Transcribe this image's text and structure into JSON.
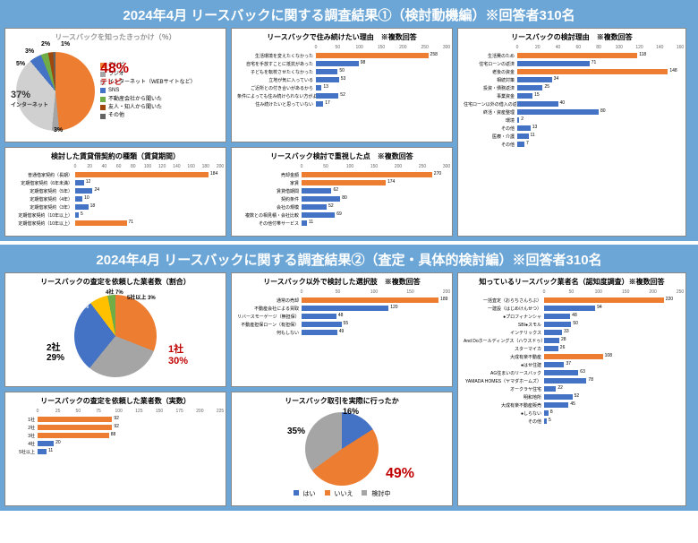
{
  "colors": {
    "orange": "#ed7d31",
    "blue": "#4472c4",
    "gray": "#a5a5a5",
    "lightgray": "#d0d0d0",
    "bg": "#6ba6d6",
    "red": "#c00000"
  },
  "section1": {
    "title": "2024年4月 リースバックに関する調査結果①（検討動機編）※回答者310名",
    "pie1": {
      "title": "リースバックを知ったきっかけ（％）",
      "slices": [
        {
          "label": "テレビ",
          "value": 48,
          "color": "#ed7d31"
        },
        {
          "label": "ラジオ",
          "value": 3,
          "color": "#a5a5a5"
        },
        {
          "label": "インターネット（WEBサイトなど）",
          "value": 37,
          "color": "#d0d0d0"
        },
        {
          "label": "SNS",
          "value": 5,
          "color": "#4472c4"
        },
        {
          "label": "不動産会社から聞いた",
          "value": 3,
          "color": "#70ad47"
        },
        {
          "label": "友人・知人から聞いた",
          "value": 2,
          "color": "#9e480e"
        },
        {
          "label": "その他",
          "value": 1,
          "color": "#636363"
        }
      ],
      "callout_big": {
        "text": "48%",
        "sub": "テレビ",
        "color": "#c00000"
      },
      "callout_2": {
        "text": "37%",
        "sub": "インターネット"
      }
    },
    "bar1": {
      "title": "リースバックで住み続けたい理由　※複数回答",
      "label_w": 88,
      "xmax": 300,
      "xstep": 50,
      "rows": [
        {
          "label": "生活環境を変えたくなかった",
          "value": 258,
          "color": "#ed7d31"
        },
        {
          "label": "自宅を手放すことに抵抗があった",
          "value": 98,
          "color": "#4472c4"
        },
        {
          "label": "子どもを転校させたくなかった",
          "value": 50,
          "color": "#4472c4"
        },
        {
          "label": "立地が気に入っている",
          "value": 53,
          "color": "#4472c4"
        },
        {
          "label": "ご近所との付き合いがあるから",
          "value": 13,
          "color": "#4472c4"
        },
        {
          "label": "条件によっても住み続けられない方がよかった",
          "value": 52,
          "color": "#4472c4"
        },
        {
          "label": "住み続けたいと思っていない",
          "value": 17,
          "color": "#4472c4"
        }
      ]
    },
    "bar2": {
      "title": "リースバックの検討理由　※複数回答",
      "label_w": 60,
      "xmax": 160,
      "xstep": 20,
      "rows": [
        {
          "label": "生活費のため",
          "value": 118,
          "color": "#ed7d31"
        },
        {
          "label": "住宅ローンの返済",
          "value": 71,
          "color": "#4472c4"
        },
        {
          "label": "老後の資金",
          "value": 148,
          "color": "#ed7d31"
        },
        {
          "label": "相続対策",
          "value": 34,
          "color": "#4472c4"
        },
        {
          "label": "投資・債務返済",
          "value": 25,
          "color": "#4472c4"
        },
        {
          "label": "事業資金",
          "value": 15,
          "color": "#4472c4"
        },
        {
          "label": "住宅ローン以外の借入の返済",
          "value": 40,
          "color": "#4472c4"
        },
        {
          "label": "終活・資産整理",
          "value": 80,
          "color": "#4472c4"
        },
        {
          "label": "環境",
          "value": 2,
          "color": "#4472c4"
        },
        {
          "label": "その他",
          "value": 13,
          "color": "#4472c4"
        },
        {
          "label": "医療・介護",
          "value": 11,
          "color": "#4472c4"
        },
        {
          "label": "その他",
          "value": 7,
          "color": "#4472c4"
        }
      ]
    },
    "bar3": {
      "title": "検討した賃貸借契約の種類（賃貸期間）",
      "label_w": 72,
      "xmax": 200,
      "xstep": 20,
      "rows": [
        {
          "label": "普通借家契約（長期）",
          "value": 184,
          "color": "#ed7d31"
        },
        {
          "label": "定期借家契約（6年未満）",
          "value": 12,
          "color": "#4472c4"
        },
        {
          "label": "定期借家契約（5年）",
          "value": 24,
          "color": "#4472c4"
        },
        {
          "label": "定期借家契約（4年）",
          "value": 10,
          "color": "#4472c4"
        },
        {
          "label": "定期借家契約（3年）",
          "value": 18,
          "color": "#4472c4"
        },
        {
          "label": "定期借家契約（10年以上）",
          "value": 5,
          "color": "#4472c4"
        },
        {
          "label": "定期借家契約（10年以上）",
          "value": 71,
          "color": "#ed7d31"
        }
      ]
    },
    "bar4": {
      "title": "リースバック検討で重視した点　※複数回答",
      "label_w": 72,
      "xmax": 300,
      "xstep": 50,
      "rows": [
        {
          "label": "売却金額",
          "value": 270,
          "color": "#ed7d31"
        },
        {
          "label": "家賃",
          "value": 174,
          "color": "#ed7d31"
        },
        {
          "label": "賃貸借期間",
          "value": 62,
          "color": "#4472c4"
        },
        {
          "label": "契約条件",
          "value": 80,
          "color": "#4472c4"
        },
        {
          "label": "会社の規模",
          "value": 52,
          "color": "#4472c4"
        },
        {
          "label": "複数との相見積・会社比較",
          "value": 69,
          "color": "#4472c4"
        },
        {
          "label": "その他付帯サービス",
          "value": 11,
          "color": "#4472c4"
        }
      ]
    }
  },
  "section2": {
    "title": "2024年4月 リースバックに関する調査結果②（査定・具体的検討編）※回答者310名",
    "pie2": {
      "title": "リースバックの査定を依頼した業者数（割合）",
      "slices": [
        {
          "label": "1社",
          "value": 30,
          "color": "#ed7d31"
        },
        {
          "label": "2社",
          "value": 29,
          "color": "#a5a5a5"
        },
        {
          "label": "3社",
          "value": 28,
          "color": "#4472c4"
        },
        {
          "label": "4社",
          "value": 7,
          "color": "#ffc000"
        },
        {
          "label": "5社以上",
          "value": 3,
          "color": "#70ad47"
        }
      ],
      "callouts": [
        {
          "text": "1社",
          "pct": "30%",
          "big": true
        },
        {
          "text": "2社",
          "pct": "29%"
        },
        {
          "text": "3社",
          "pct": "28%"
        },
        {
          "text": "4社 7%"
        },
        {
          "text": "5社以上 3%"
        }
      ]
    },
    "bar5": {
      "title": "リースバック以外で検討した選択肢　※複数回答",
      "label_w": 72,
      "xmax": 200,
      "xstep": 50,
      "rows": [
        {
          "label": "通常の売却",
          "value": 189,
          "color": "#ed7d31"
        },
        {
          "label": "不動産会社による買取",
          "value": 120,
          "color": "#4472c4"
        },
        {
          "label": "リバースモーゲージ（無担保）",
          "value": 48,
          "color": "#4472c4"
        },
        {
          "label": "不動産担保ローン（有担保）",
          "value": 55,
          "color": "#4472c4"
        },
        {
          "label": "何もしない",
          "value": 49,
          "color": "#4472c4"
        }
      ]
    },
    "bar6": {
      "title": "知っているリースバック業者名（認知度調査）※複数回答",
      "label_w": 90,
      "xmax": 250,
      "xstep": 50,
      "rows": [
        {
          "label": "一括査定（おらちさんらぶ）",
          "value": 220,
          "color": "#ed7d31"
        },
        {
          "label": "一建設（はじめけんせつ）",
          "value": 94,
          "color": "#4472c4"
        },
        {
          "label": "●プロフィナンシャ",
          "value": 48,
          "color": "#4472c4"
        },
        {
          "label": "SBI●スモル",
          "value": 50,
          "color": "#4472c4"
        },
        {
          "label": "インテリックス",
          "value": 33,
          "color": "#4472c4"
        },
        {
          "label": "And Doホールディングス（ハウスドゥ）",
          "value": 28,
          "color": "#4472c4"
        },
        {
          "label": "スターマイカ",
          "value": 26,
          "color": "#4472c4"
        },
        {
          "label": "大成有楽不動産",
          "value": 108,
          "color": "#ed7d31"
        },
        {
          "label": "●はせ住建",
          "value": 37,
          "color": "#4472c4"
        },
        {
          "label": "AG住まいのリースバック",
          "value": 63,
          "color": "#4472c4"
        },
        {
          "label": "YAMADA HOMES（ヤマダホームズ）",
          "value": 78,
          "color": "#4472c4"
        },
        {
          "label": "オークラヤ住宅",
          "value": 22,
          "color": "#4472c4"
        },
        {
          "label": "明和地所",
          "value": 52,
          "color": "#4472c4"
        },
        {
          "label": "大成有楽不動産販売",
          "value": 45,
          "color": "#4472c4"
        },
        {
          "label": "●しらない",
          "value": 8,
          "color": "#4472c4"
        },
        {
          "label": "その他",
          "value": 5,
          "color": "#4472c4"
        }
      ]
    },
    "bar7": {
      "title": "リースバックの査定を依頼した業者数（実数）",
      "label_w": 30,
      "xmax": 225,
      "xstep": 25,
      "rows": [
        {
          "label": "1社",
          "value": 92,
          "color": "#ed7d31"
        },
        {
          "label": "2社",
          "value": 92,
          "color": "#ed7d31"
        },
        {
          "label": "3社",
          "value": 88,
          "color": "#ed7d31"
        },
        {
          "label": "4社",
          "value": 20,
          "color": "#4472c4"
        },
        {
          "label": "5社以上",
          "value": 11,
          "color": "#4472c4"
        }
      ]
    },
    "pie3": {
      "title": "リースバック取引を実際に行ったか",
      "slices": [
        {
          "label": "はい",
          "value": 16,
          "color": "#4472c4"
        },
        {
          "label": "いいえ",
          "value": 49,
          "color": "#ed7d31"
        },
        {
          "label": "検討中",
          "value": 35,
          "color": "#a5a5a5"
        }
      ],
      "legend": [
        "はい",
        "いいえ",
        "検討中"
      ]
    }
  }
}
